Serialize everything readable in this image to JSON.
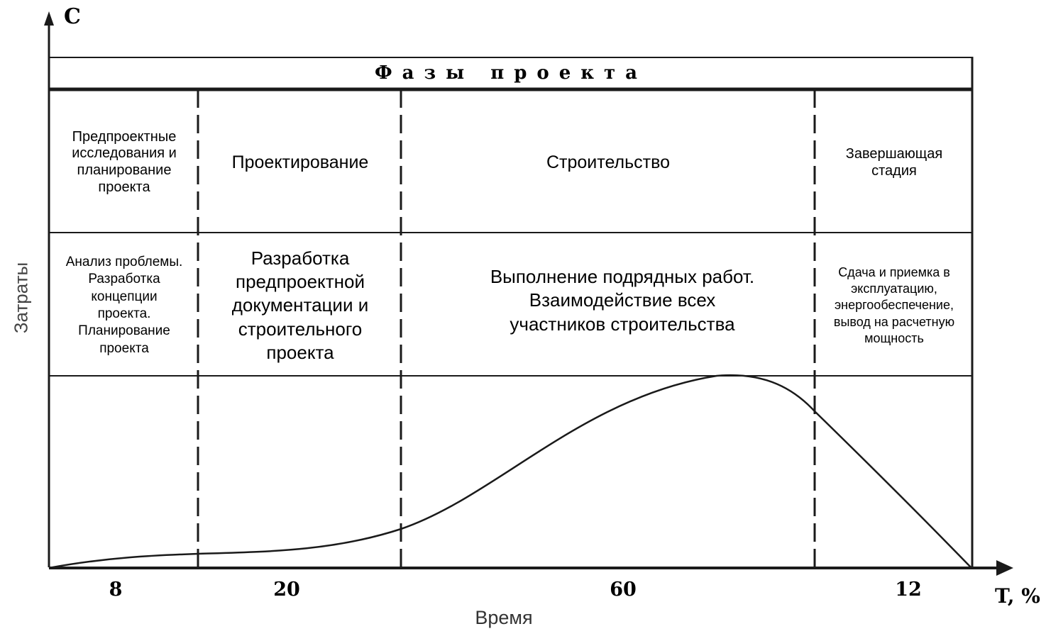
{
  "axes": {
    "y_symbol": "C",
    "y_label": "Затраты",
    "x_symbol": "T, %",
    "x_label": "Время"
  },
  "header": {
    "title": "Фазы проекта"
  },
  "phases": [
    {
      "name": "Предпроектные\nисследования и\nпланирование\nпроекта",
      "description": "Анализ проблемы.\nРазработка\nконцепции\nпроекта.\nПланирование\nпроекта",
      "percent": "8"
    },
    {
      "name": "Проектирование",
      "description": "Разработка\nпредпроектной\nдокументации и\nстроительного\nпроекта",
      "percent": "20"
    },
    {
      "name": "Строительство",
      "description": "Выполнение подрядных работ.\nВзаимодействие всех\nучастников строительства",
      "percent": "60"
    },
    {
      "name": "Завершающая\nстадия",
      "description": "Сдача и приемка в\nэксплуатацию,\nэнергообеспечение,\nвывод на расчетную\nмощность",
      "percent": "12"
    }
  ],
  "colors": {
    "line": "#1a1a1a",
    "text": "#000000",
    "axis_label": "#444444"
  }
}
